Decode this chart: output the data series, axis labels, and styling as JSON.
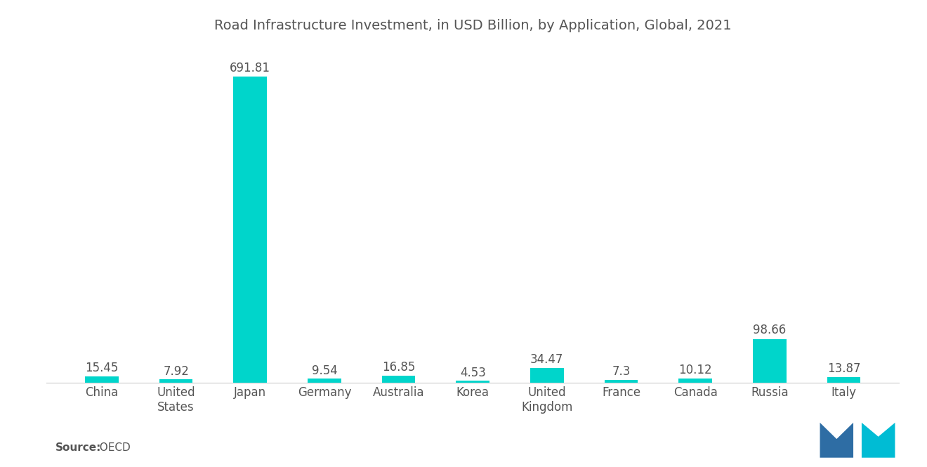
{
  "title": "Road Infrastructure Investment, in USD Billion, by Application, Global, 2021",
  "categories": [
    "China",
    "United\nStates",
    "Japan",
    "Germany",
    "Australia",
    "Korea",
    "United\nKingdom",
    "France",
    "Canada",
    "Russia",
    "Italy"
  ],
  "values": [
    15.45,
    7.92,
    691.81,
    9.54,
    16.85,
    4.53,
    34.47,
    7.3,
    10.12,
    98.66,
    13.87
  ],
  "bar_colors": [
    "#00D5CB",
    "#00D5CB",
    "#00D5CB",
    "#00D5CB",
    "#00D5CB",
    "#00D5CB",
    "#00D5CB",
    "#00D5CB",
    "#00D5CB",
    "#00D5CB",
    "#00D5CB"
  ],
  "source_label": "Source:",
  "source_value": "  OECD",
  "title_fontsize": 14,
  "label_fontsize": 12,
  "tick_fontsize": 12,
  "background_color": "#ffffff",
  "text_color": "#555555",
  "value_labels": [
    "15.45",
    "7.92",
    "691.81",
    "9.54",
    "16.85",
    "4.53",
    "34.47",
    "7.3",
    "10.12",
    "98.66",
    "13.87"
  ],
  "ylim": [
    0,
    760
  ],
  "bar_width": 0.45,
  "logo_navy": "#2E6DA4",
  "logo_teal": "#00BCD4"
}
